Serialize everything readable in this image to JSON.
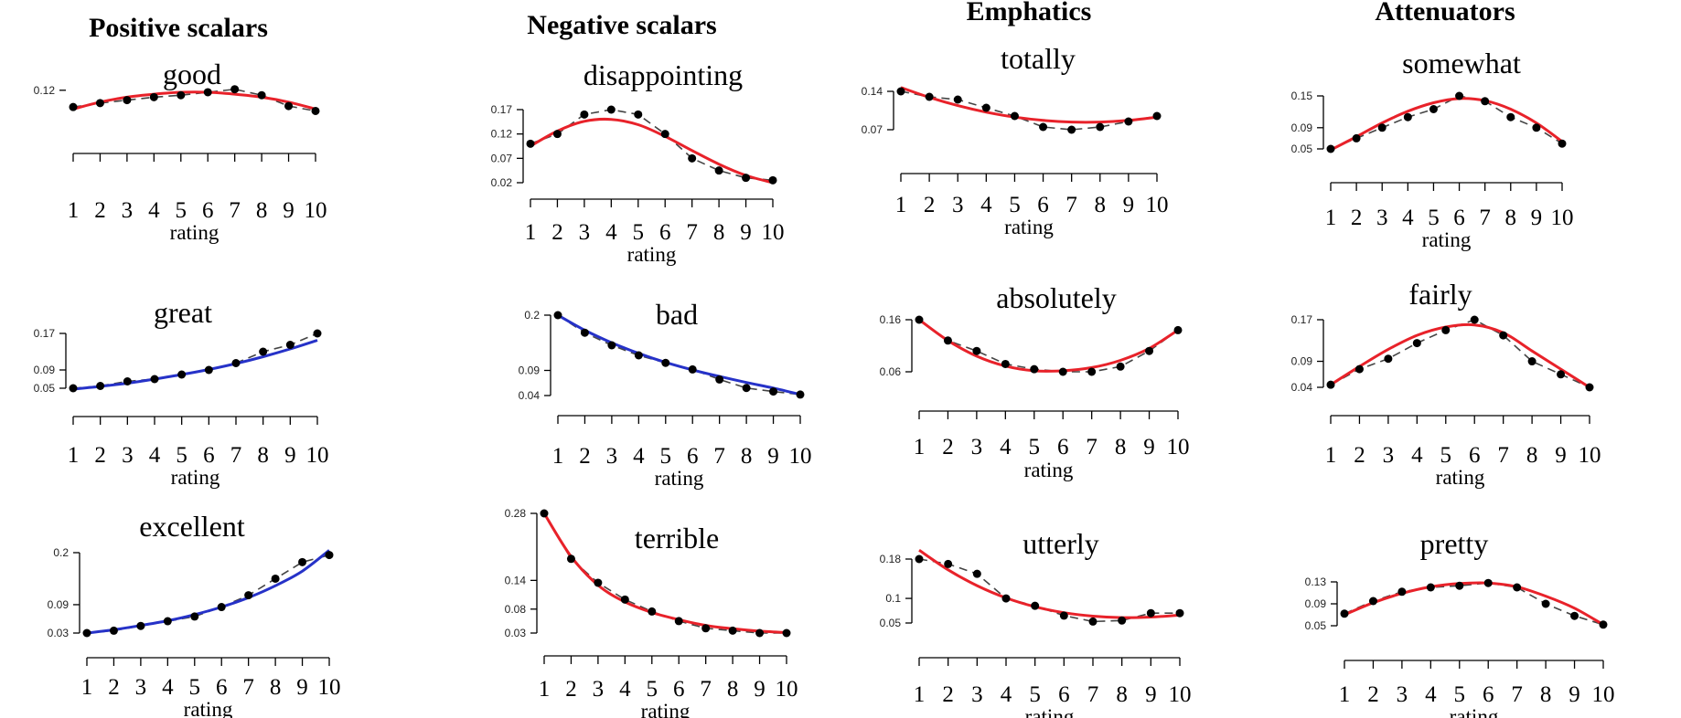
{
  "colors": {
    "red": "#e8222a",
    "blue": "#2632c8"
  },
  "columns": [
    {
      "heading": "Positive scalars"
    },
    {
      "heading": "Negative scalars"
    },
    {
      "heading": "Emphatics"
    },
    {
      "heading": "Attenuators"
    }
  ],
  "chart_data": [
    {
      "id": "good",
      "type": "line",
      "title": "good",
      "xlabel": "rating",
      "fit_color": "red",
      "x": [
        1,
        2,
        3,
        4,
        5,
        6,
        7,
        8,
        9,
        10
      ],
      "points": [
        0.103,
        0.107,
        0.11,
        0.113,
        0.115,
        0.118,
        0.121,
        0.115,
        0.104,
        0.099
      ],
      "fit": [
        0.101,
        0.108,
        0.113,
        0.116,
        0.118,
        0.118,
        0.116,
        0.113,
        0.108,
        0.101
      ],
      "ylim": [
        0.08,
        0.13
      ],
      "yticks": [
        {
          "v": 0.12,
          "label": "0.12"
        }
      ]
    },
    {
      "id": "disappointing",
      "type": "line",
      "title": "disappointing",
      "xlabel": "rating",
      "fit_color": "red",
      "x": [
        1,
        2,
        3,
        4,
        5,
        6,
        7,
        8,
        9,
        10
      ],
      "points": [
        0.1,
        0.12,
        0.16,
        0.17,
        0.16,
        0.12,
        0.07,
        0.045,
        0.03,
        0.025
      ],
      "fit": [
        0.095,
        0.126,
        0.146,
        0.15,
        0.139,
        0.115,
        0.086,
        0.058,
        0.035,
        0.02
      ],
      "ylim": [
        0.02,
        0.17
      ],
      "yticks": [
        {
          "v": 0.17,
          "label": "0.17"
        },
        {
          "v": 0.12,
          "label": "0.12"
        },
        {
          "v": 0.07,
          "label": "0.07"
        },
        {
          "v": 0.02,
          "label": "0.02"
        }
      ]
    },
    {
      "id": "totally",
      "type": "line",
      "title": "totally",
      "xlabel": "rating",
      "fit_color": "red",
      "x": [
        1,
        2,
        3,
        4,
        5,
        6,
        7,
        8,
        9,
        10
      ],
      "points": [
        0.14,
        0.13,
        0.125,
        0.11,
        0.095,
        0.075,
        0.07,
        0.075,
        0.085,
        0.095
      ],
      "fit": [
        0.147,
        0.129,
        0.114,
        0.102,
        0.093,
        0.087,
        0.084,
        0.084,
        0.087,
        0.093
      ],
      "ylim": [
        0.07,
        0.14
      ],
      "yticks": [
        {
          "v": 0.14,
          "label": "0.14"
        },
        {
          "v": 0.07,
          "label": "0.07"
        }
      ]
    },
    {
      "id": "somewhat",
      "type": "line",
      "title": "somewhat",
      "xlabel": "rating",
      "fit_color": "red",
      "x": [
        1,
        2,
        3,
        4,
        5,
        6,
        7,
        8,
        9,
        10
      ],
      "points": [
        0.05,
        0.07,
        0.09,
        0.11,
        0.125,
        0.15,
        0.14,
        0.11,
        0.09,
        0.06
      ],
      "fit": [
        0.048,
        0.073,
        0.099,
        0.121,
        0.137,
        0.145,
        0.141,
        0.125,
        0.099,
        0.064
      ],
      "ylim": [
        0.05,
        0.15
      ],
      "yticks": [
        {
          "v": 0.15,
          "label": "0.15"
        },
        {
          "v": 0.09,
          "label": "0.09"
        },
        {
          "v": 0.05,
          "label": "0.05"
        }
      ]
    },
    {
      "id": "great",
      "type": "line",
      "title": "great",
      "xlabel": "rating",
      "fit_color": "blue",
      "x": [
        1,
        2,
        3,
        4,
        5,
        6,
        7,
        8,
        9,
        10
      ],
      "points": [
        0.05,
        0.055,
        0.065,
        0.07,
        0.08,
        0.09,
        0.105,
        0.13,
        0.145,
        0.17
      ],
      "fit": [
        0.048,
        0.054,
        0.061,
        0.07,
        0.08,
        0.091,
        0.104,
        0.119,
        0.136,
        0.155
      ],
      "ylim": [
        0.05,
        0.17
      ],
      "yticks": [
        {
          "v": 0.17,
          "label": "0.17"
        },
        {
          "v": 0.09,
          "label": "0.09"
        },
        {
          "v": 0.05,
          "label": "0.05"
        }
      ]
    },
    {
      "id": "bad",
      "type": "line",
      "title": "bad",
      "xlabel": "rating",
      "fit_color": "blue",
      "x": [
        1,
        2,
        3,
        4,
        5,
        6,
        7,
        8,
        9,
        10
      ],
      "points": [
        0.2,
        0.165,
        0.14,
        0.12,
        0.105,
        0.092,
        0.072,
        0.055,
        0.048,
        0.042
      ],
      "fit": [
        0.2,
        0.17,
        0.145,
        0.124,
        0.106,
        0.091,
        0.078,
        0.066,
        0.055,
        0.042
      ],
      "ylim": [
        0.04,
        0.2
      ],
      "yticks": [
        {
          "v": 0.2,
          "label": "0.2"
        },
        {
          "v": 0.09,
          "label": "0.09"
        },
        {
          "v": 0.04,
          "label": "0.04"
        }
      ]
    },
    {
      "id": "absolutely",
      "type": "line",
      "title": "absolutely",
      "xlabel": "rating",
      "fit_color": "red",
      "x": [
        1,
        2,
        3,
        4,
        5,
        6,
        7,
        8,
        9,
        10
      ],
      "points": [
        0.16,
        0.12,
        0.1,
        0.075,
        0.065,
        0.06,
        0.06,
        0.07,
        0.1,
        0.14
      ],
      "fit": [
        0.16,
        0.12,
        0.09,
        0.071,
        0.062,
        0.062,
        0.068,
        0.082,
        0.105,
        0.14
      ],
      "ylim": [
        0.06,
        0.16
      ],
      "yticks": [
        {
          "v": 0.16,
          "label": "0.16"
        },
        {
          "v": 0.06,
          "label": "0.06"
        }
      ]
    },
    {
      "id": "fairly",
      "type": "line",
      "title": "fairly",
      "xlabel": "rating",
      "fit_color": "red",
      "x": [
        1,
        2,
        3,
        4,
        5,
        6,
        7,
        8,
        9,
        10
      ],
      "points": [
        0.045,
        0.075,
        0.095,
        0.125,
        0.15,
        0.17,
        0.14,
        0.09,
        0.065,
        0.04
      ],
      "fit": [
        0.045,
        0.08,
        0.113,
        0.14,
        0.156,
        0.16,
        0.145,
        0.11,
        0.075,
        0.04
      ],
      "ylim": [
        0.04,
        0.17
      ],
      "yticks": [
        {
          "v": 0.17,
          "label": "0.17"
        },
        {
          "v": 0.09,
          "label": "0.09"
        },
        {
          "v": 0.04,
          "label": "0.04"
        }
      ]
    },
    {
      "id": "excellent",
      "type": "line",
      "title": "excellent",
      "xlabel": "rating",
      "fit_color": "blue",
      "x": [
        1,
        2,
        3,
        4,
        5,
        6,
        7,
        8,
        9,
        10
      ],
      "points": [
        0.03,
        0.035,
        0.045,
        0.055,
        0.065,
        0.085,
        0.11,
        0.145,
        0.18,
        0.195
      ],
      "fit": [
        0.03,
        0.037,
        0.046,
        0.056,
        0.069,
        0.085,
        0.105,
        0.13,
        0.161,
        0.205
      ],
      "ylim": [
        0.03,
        0.2
      ],
      "yticks": [
        {
          "v": 0.2,
          "label": "0.2"
        },
        {
          "v": 0.09,
          "label": "0.09"
        },
        {
          "v": 0.03,
          "label": "0.03"
        }
      ]
    },
    {
      "id": "terrible",
      "type": "line",
      "title": "terrible",
      "xlabel": "rating",
      "fit_color": "red",
      "x": [
        1,
        2,
        3,
        4,
        5,
        6,
        7,
        8,
        9,
        10
      ],
      "points": [
        0.28,
        0.185,
        0.135,
        0.1,
        0.075,
        0.055,
        0.04,
        0.035,
        0.03,
        0.03
      ],
      "fit": [
        0.28,
        0.19,
        0.13,
        0.095,
        0.073,
        0.058,
        0.046,
        0.039,
        0.034,
        0.031
      ],
      "ylim": [
        0.03,
        0.28
      ],
      "yticks": [
        {
          "v": 0.28,
          "label": "0.28"
        },
        {
          "v": 0.14,
          "label": "0.14"
        },
        {
          "v": 0.08,
          "label": "0.08"
        },
        {
          "v": 0.03,
          "label": "0.03"
        }
      ]
    },
    {
      "id": "utterly",
      "type": "line",
      "title": "utterly",
      "xlabel": "rating",
      "fit_color": "red",
      "x": [
        1,
        2,
        3,
        4,
        5,
        6,
        7,
        8,
        9,
        10
      ],
      "points": [
        0.18,
        0.17,
        0.15,
        0.1,
        0.085,
        0.065,
        0.053,
        0.055,
        0.07,
        0.07
      ],
      "fit": [
        0.198,
        0.158,
        0.126,
        0.101,
        0.083,
        0.071,
        0.064,
        0.061,
        0.062,
        0.066
      ],
      "ylim": [
        0.05,
        0.18
      ],
      "yticks": [
        {
          "v": 0.18,
          "label": "0.18"
        },
        {
          "v": 0.1,
          "label": "0.1"
        },
        {
          "v": 0.05,
          "label": "0.05"
        }
      ]
    },
    {
      "id": "pretty",
      "type": "line",
      "title": "pretty",
      "xlabel": "rating",
      "fit_color": "red",
      "x": [
        1,
        2,
        3,
        4,
        5,
        6,
        7,
        8,
        9,
        10
      ],
      "points": [
        0.072,
        0.095,
        0.112,
        0.12,
        0.123,
        0.128,
        0.12,
        0.09,
        0.068,
        0.052
      ],
      "fit": [
        0.07,
        0.092,
        0.109,
        0.121,
        0.127,
        0.128,
        0.121,
        0.104,
        0.082,
        0.052
      ],
      "ylim": [
        0.05,
        0.13
      ],
      "yticks": [
        {
          "v": 0.13,
          "label": "0.13"
        },
        {
          "v": 0.09,
          "label": "0.09"
        },
        {
          "v": 0.05,
          "label": "0.05"
        }
      ]
    }
  ]
}
